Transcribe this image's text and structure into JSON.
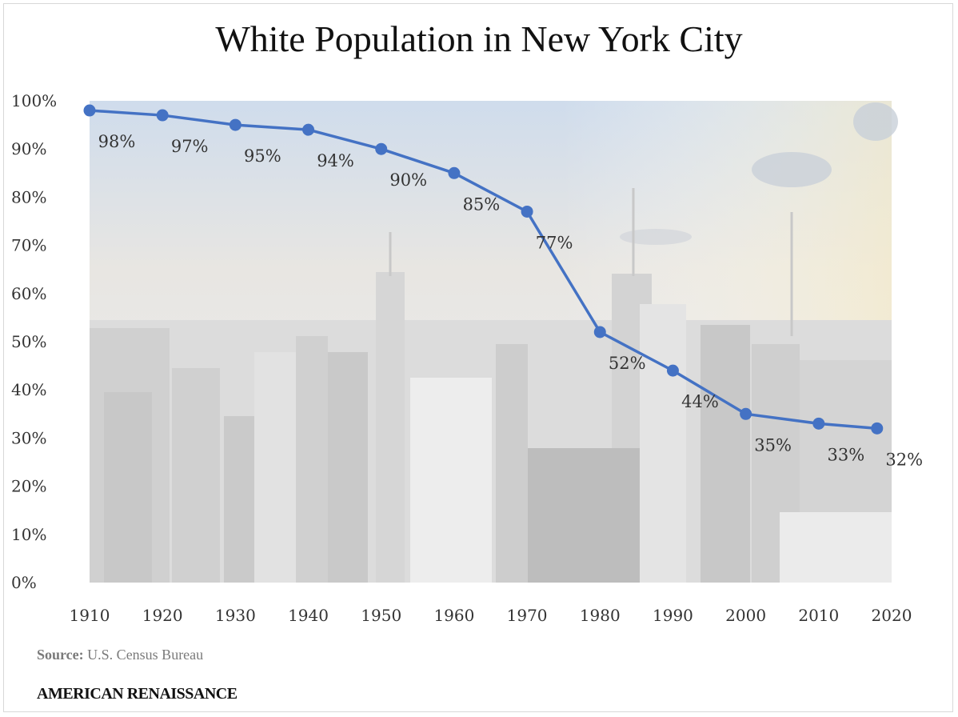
{
  "chart_data": {
    "type": "line",
    "title": "White Population in New York City",
    "x": [
      1910,
      1920,
      1930,
      1940,
      1950,
      1960,
      1970,
      1980,
      1990,
      2000,
      2010,
      2018
    ],
    "series": [
      {
        "values": [
          98,
          97,
          95,
          94,
          90,
          85,
          77,
          52,
          44,
          35,
          33,
          32
        ],
        "labels": [
          "98%",
          "97%",
          "95%",
          "94%",
          "90%",
          "85%",
          "77%",
          "52%",
          "44%",
          "35%",
          "33%",
          "32%"
        ]
      }
    ],
    "x_ticks": [
      "1910",
      "1920",
      "1930",
      "1940",
      "1950",
      "1960",
      "1970",
      "1980",
      "1990",
      "2000",
      "2010",
      "2020"
    ],
    "y_ticks": [
      "0%",
      "10%",
      "20%",
      "30%",
      "40%",
      "50%",
      "60%",
      "70%",
      "80%",
      "90%",
      "100%"
    ],
    "xlim": [
      1910,
      2020
    ],
    "ylim": [
      0,
      100
    ],
    "grid": false,
    "background": "faded city skyline photo",
    "line_color": "#4472c4"
  },
  "source": {
    "label": "Source:",
    "text": "U.S. Census Bureau"
  },
  "brand": "AMERICAN RENAISSANCE"
}
